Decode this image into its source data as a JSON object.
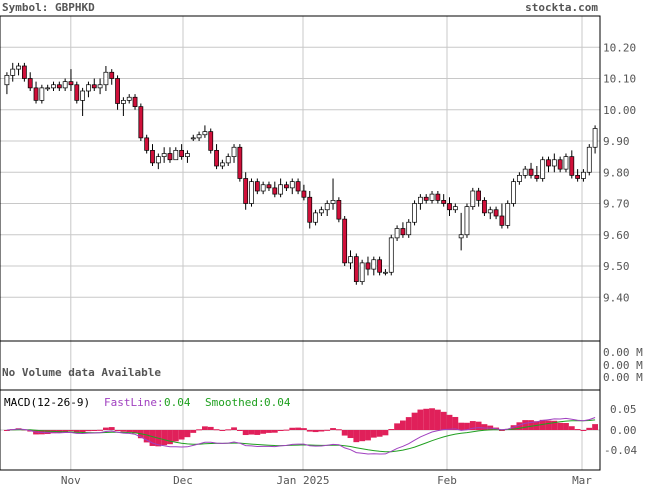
{
  "header": {
    "symbol_text": "Symbol: GBPHKD",
    "brand": "stockta.com"
  },
  "volume": {
    "no_data_text": "No Volume data Available",
    "axis_labels": [
      "0.00 M",
      "0.00 M",
      "0.00 M"
    ]
  },
  "macd": {
    "title": "MACD(12-26-9)",
    "fast_label": "FastLine:",
    "fast_value": "0.04",
    "smooth_label": "Smoothed:",
    "smooth_value": "0.04",
    "fast_color": "#a040c0",
    "smooth_color": "#20a020",
    "hist_color": "#e0205a",
    "ticks": [
      "0.05",
      "0.00",
      "-0.04"
    ]
  },
  "colors": {
    "up": "#ffffff",
    "down": "#d0103a",
    "grid": "#c8c8c8",
    "frame": "#000000",
    "text": "#555555"
  },
  "chart_data": {
    "type": "candlestick",
    "symbol": "GBPHKD",
    "y_ticks": [
      9.4,
      9.5,
      9.6,
      9.7,
      9.8,
      9.9,
      10.0,
      10.1,
      10.2
    ],
    "ylim": [
      9.26,
      10.3
    ],
    "x_labels": [
      "Nov",
      "Dec",
      "Jan 2025",
      "Feb",
      "Mar"
    ],
    "candles": [
      [
        10.08,
        10.12,
        10.05,
        10.11
      ],
      [
        10.11,
        10.15,
        10.09,
        10.13
      ],
      [
        10.13,
        10.15,
        10.11,
        10.14
      ],
      [
        10.14,
        10.15,
        10.09,
        10.1
      ],
      [
        10.1,
        10.12,
        10.06,
        10.07
      ],
      [
        10.07,
        10.09,
        10.02,
        10.03
      ],
      [
        10.03,
        10.08,
        10.02,
        10.07
      ],
      [
        10.07,
        10.08,
        10.06,
        10.07
      ],
      [
        10.07,
        10.09,
        10.06,
        10.08
      ],
      [
        10.08,
        10.09,
        10.06,
        10.07
      ],
      [
        10.07,
        10.1,
        10.06,
        10.09
      ],
      [
        10.09,
        10.13,
        10.06,
        10.08
      ],
      [
        10.08,
        10.09,
        10.02,
        10.03
      ],
      [
        10.03,
        10.07,
        9.98,
        10.06
      ],
      [
        10.06,
        10.09,
        10.04,
        10.08
      ],
      [
        10.08,
        10.1,
        10.06,
        10.07
      ],
      [
        10.07,
        10.1,
        10.05,
        10.08
      ],
      [
        10.08,
        10.14,
        10.06,
        10.12
      ],
      [
        10.12,
        10.13,
        10.08,
        10.1
      ],
      [
        10.1,
        10.11,
        10.0,
        10.02
      ],
      [
        10.02,
        10.04,
        9.98,
        10.03
      ],
      [
        10.03,
        10.05,
        10.02,
        10.04
      ],
      [
        10.04,
        10.05,
        10.0,
        10.01
      ],
      [
        10.01,
        10.02,
        9.9,
        9.91
      ],
      [
        9.91,
        9.92,
        9.86,
        9.87
      ],
      [
        9.87,
        9.89,
        9.82,
        9.83
      ],
      [
        9.83,
        9.86,
        9.81,
        9.85
      ],
      [
        9.85,
        9.88,
        9.83,
        9.86
      ],
      [
        9.86,
        9.88,
        9.83,
        9.84
      ],
      [
        9.84,
        9.88,
        9.84,
        9.87
      ],
      [
        9.87,
        9.89,
        9.84,
        9.85
      ],
      [
        9.85,
        9.87,
        9.83,
        9.86
      ],
      [
        9.91,
        9.92,
        9.9,
        9.91
      ],
      [
        9.91,
        9.93,
        9.9,
        9.92
      ],
      [
        9.92,
        9.95,
        9.91,
        9.93
      ],
      [
        9.93,
        9.94,
        9.86,
        9.87
      ],
      [
        9.87,
        9.89,
        9.81,
        9.82
      ],
      [
        9.82,
        9.84,
        9.81,
        9.83
      ],
      [
        9.83,
        9.86,
        9.82,
        9.85
      ],
      [
        9.85,
        9.89,
        9.83,
        9.88
      ],
      [
        9.88,
        9.89,
        9.77,
        9.78
      ],
      [
        9.78,
        9.8,
        9.68,
        9.7
      ],
      [
        9.7,
        9.78,
        9.69,
        9.77
      ],
      [
        9.77,
        9.78,
        9.73,
        9.74
      ],
      [
        9.74,
        9.77,
        9.73,
        9.76
      ],
      [
        9.76,
        9.77,
        9.74,
        9.75
      ],
      [
        9.75,
        9.77,
        9.72,
        9.73
      ],
      [
        9.73,
        9.78,
        9.72,
        9.76
      ],
      [
        9.76,
        9.77,
        9.74,
        9.75
      ],
      [
        9.75,
        9.78,
        9.73,
        9.77
      ],
      [
        9.77,
        9.78,
        9.73,
        9.74
      ],
      [
        9.74,
        9.76,
        9.71,
        9.72
      ],
      [
        9.72,
        9.74,
        9.62,
        9.64
      ],
      [
        9.64,
        9.68,
        9.63,
        9.67
      ],
      [
        9.67,
        9.69,
        9.66,
        9.68
      ],
      [
        9.68,
        9.71,
        9.66,
        9.7
      ],
      [
        9.7,
        9.78,
        9.68,
        9.71
      ],
      [
        9.71,
        9.72,
        9.64,
        9.65
      ],
      [
        9.65,
        9.66,
        9.5,
        9.51
      ],
      [
        9.51,
        9.55,
        9.49,
        9.53
      ],
      [
        9.53,
        9.54,
        9.44,
        9.45
      ],
      [
        9.45,
        9.52,
        9.44,
        9.51
      ],
      [
        9.51,
        9.53,
        9.47,
        9.49
      ],
      [
        9.49,
        9.53,
        9.47,
        9.52
      ],
      [
        9.52,
        9.53,
        9.47,
        9.48
      ],
      [
        9.48,
        9.49,
        9.47,
        9.48
      ],
      [
        9.48,
        9.6,
        9.47,
        9.59
      ],
      [
        9.59,
        9.63,
        9.58,
        9.62
      ],
      [
        9.62,
        9.64,
        9.59,
        9.6
      ],
      [
        9.6,
        9.65,
        9.59,
        9.64
      ],
      [
        9.64,
        9.71,
        9.63,
        9.7
      ],
      [
        9.7,
        9.73,
        9.68,
        9.72
      ],
      [
        9.72,
        9.73,
        9.7,
        9.71
      ],
      [
        9.71,
        9.74,
        9.7,
        9.73
      ],
      [
        9.73,
        9.74,
        9.7,
        9.71
      ],
      [
        9.71,
        9.73,
        9.69,
        9.7
      ],
      [
        9.7,
        9.72,
        9.66,
        9.68
      ],
      [
        9.68,
        9.7,
        9.67,
        9.69
      ],
      [
        9.59,
        9.67,
        9.55,
        9.6
      ],
      [
        9.6,
        9.7,
        9.59,
        9.69
      ],
      [
        9.69,
        9.75,
        9.68,
        9.74
      ],
      [
        9.74,
        9.75,
        9.69,
        9.71
      ],
      [
        9.71,
        9.72,
        9.66,
        9.67
      ],
      [
        9.67,
        9.69,
        9.65,
        9.68
      ],
      [
        9.68,
        9.69,
        9.65,
        9.66
      ],
      [
        9.66,
        9.7,
        9.62,
        9.63
      ],
      [
        9.63,
        9.71,
        9.62,
        9.7
      ],
      [
        9.7,
        9.78,
        9.69,
        9.77
      ],
      [
        9.77,
        9.8,
        9.76,
        9.79
      ],
      [
        9.79,
        9.82,
        9.78,
        9.81
      ],
      [
        9.81,
        9.83,
        9.78,
        9.79
      ],
      [
        9.79,
        9.82,
        9.77,
        9.78
      ],
      [
        9.78,
        9.85,
        9.77,
        9.84
      ],
      [
        9.84,
        9.85,
        9.8,
        9.82
      ],
      [
        9.82,
        9.86,
        9.8,
        9.84
      ],
      [
        9.84,
        9.85,
        9.8,
        9.81
      ],
      [
        9.81,
        9.86,
        9.8,
        9.85
      ],
      [
        9.85,
        9.87,
        9.78,
        9.79
      ],
      [
        9.79,
        9.81,
        9.77,
        9.78
      ],
      [
        9.78,
        9.81,
        9.77,
        9.8
      ],
      [
        9.8,
        9.89,
        9.79,
        9.88
      ],
      [
        9.88,
        9.95,
        9.86,
        9.94
      ]
    ]
  }
}
